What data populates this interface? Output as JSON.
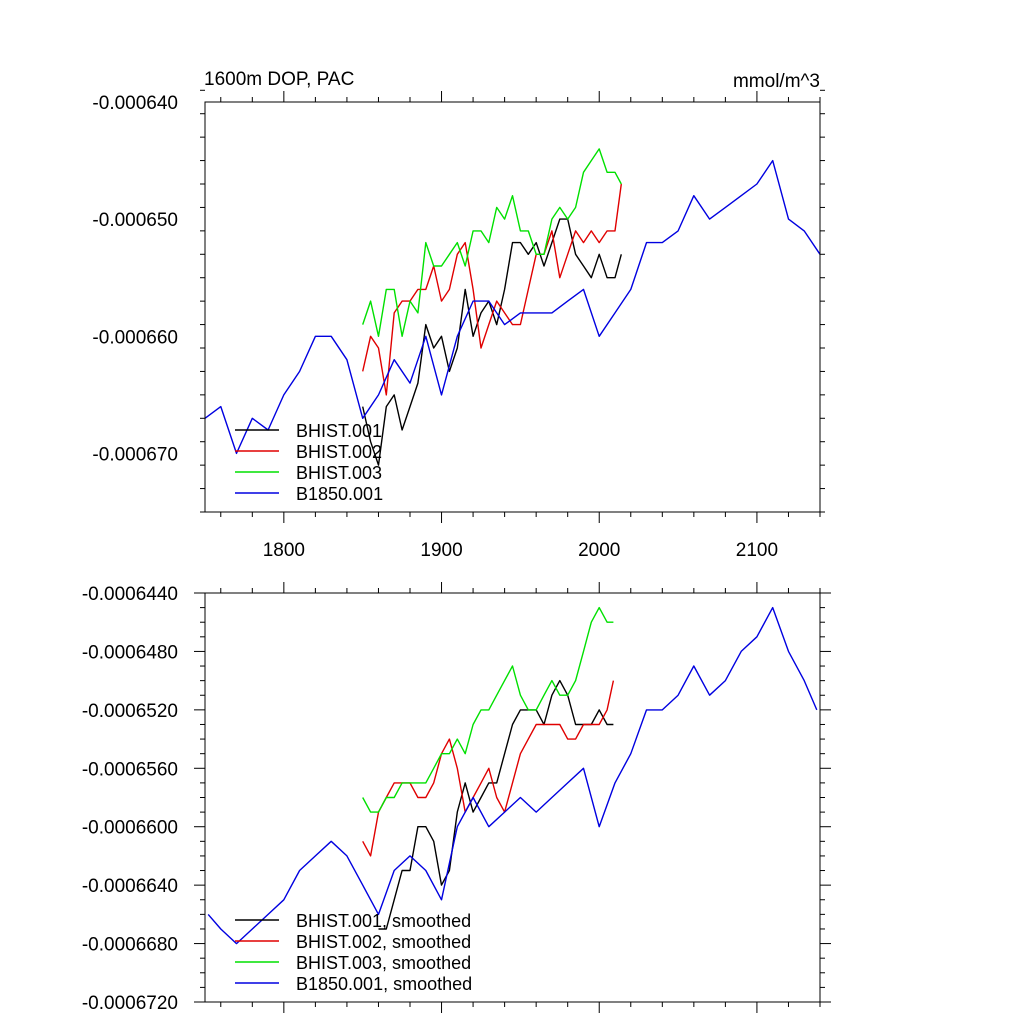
{
  "colors": {
    "BHIST.001": "#000000",
    "BHIST.002": "#e00000",
    "BHIST.003": "#00e000",
    "B1850.001": "#0000e0"
  },
  "chart_data": [
    {
      "type": "line",
      "title": "1600m DOP, PAC",
      "units": "mmol/m^3",
      "xlim": [
        1750,
        2140
      ],
      "ylim": [
        -0.000675,
        -0.00064
      ],
      "xticks": [
        1800,
        1900,
        2000,
        2100
      ],
      "yticks": [
        -0.00064,
        -0.00065,
        -0.00066,
        -0.00067
      ],
      "ytick_labels": [
        "-0.000640",
        "-0.000650",
        "-0.000660",
        "-0.000670"
      ],
      "legend": {
        "placement": "bottom-left",
        "entries": [
          "BHIST.001",
          "BHIST.002",
          "BHIST.003",
          "B1850.001"
        ]
      },
      "series": [
        {
          "name": "BHIST.001",
          "x": [
            1850,
            1855,
            1860,
            1865,
            1870,
            1875,
            1880,
            1885,
            1890,
            1895,
            1900,
            1905,
            1910,
            1915,
            1920,
            1925,
            1930,
            1935,
            1940,
            1945,
            1950,
            1955,
            1960,
            1965,
            1970,
            1975,
            1980,
            1985,
            1990,
            1995,
            2000,
            2005,
            2010,
            2014
          ],
          "y": [
            -0.000666,
            -0.000669,
            -0.000671,
            -0.000666,
            -0.000665,
            -0.000668,
            -0.000666,
            -0.000664,
            -0.000659,
            -0.000661,
            -0.00066,
            -0.000663,
            -0.000661,
            -0.000656,
            -0.00066,
            -0.000658,
            -0.000657,
            -0.000659,
            -0.000656,
            -0.000652,
            -0.000652,
            -0.000653,
            -0.000652,
            -0.000654,
            -0.000652,
            -0.00065,
            -0.00065,
            -0.000653,
            -0.000654,
            -0.000655,
            -0.000653,
            -0.000655,
            -0.000655,
            -0.000653
          ]
        },
        {
          "name": "BHIST.002",
          "x": [
            1850,
            1855,
            1860,
            1865,
            1870,
            1875,
            1880,
            1885,
            1890,
            1895,
            1900,
            1905,
            1910,
            1915,
            1920,
            1925,
            1930,
            1935,
            1940,
            1945,
            1950,
            1955,
            1960,
            1965,
            1970,
            1975,
            1980,
            1985,
            1990,
            1995,
            2000,
            2005,
            2010,
            2014
          ],
          "y": [
            -0.000663,
            -0.00066,
            -0.000661,
            -0.000665,
            -0.000658,
            -0.000657,
            -0.000657,
            -0.000656,
            -0.000656,
            -0.000654,
            -0.000657,
            -0.000656,
            -0.000653,
            -0.000652,
            -0.000656,
            -0.000661,
            -0.000659,
            -0.000657,
            -0.000658,
            -0.000659,
            -0.000659,
            -0.000656,
            -0.000653,
            -0.000653,
            -0.000651,
            -0.000655,
            -0.000653,
            -0.000651,
            -0.000652,
            -0.000651,
            -0.000652,
            -0.000651,
            -0.000651,
            -0.000647
          ]
        },
        {
          "name": "BHIST.003",
          "x": [
            1850,
            1855,
            1860,
            1865,
            1870,
            1875,
            1880,
            1885,
            1890,
            1895,
            1900,
            1905,
            1910,
            1915,
            1920,
            1925,
            1930,
            1935,
            1940,
            1945,
            1950,
            1955,
            1960,
            1965,
            1970,
            1975,
            1980,
            1985,
            1990,
            1995,
            2000,
            2005,
            2010,
            2014
          ],
          "y": [
            -0.000659,
            -0.000657,
            -0.00066,
            -0.000656,
            -0.000656,
            -0.00066,
            -0.000657,
            -0.000658,
            -0.000652,
            -0.000654,
            -0.000654,
            -0.000653,
            -0.000652,
            -0.000654,
            -0.000651,
            -0.000651,
            -0.000652,
            -0.000649,
            -0.00065,
            -0.000648,
            -0.000651,
            -0.000651,
            -0.000653,
            -0.000653,
            -0.00065,
            -0.000649,
            -0.00065,
            -0.000649,
            -0.000646,
            -0.000645,
            -0.000644,
            -0.000646,
            -0.000646,
            -0.000647
          ]
        },
        {
          "name": "B1850.001",
          "x": [
            1750,
            1760,
            1770,
            1780,
            1790,
            1800,
            1810,
            1820,
            1830,
            1840,
            1850,
            1860,
            1870,
            1880,
            1890,
            1900,
            1910,
            1920,
            1930,
            1940,
            1950,
            1960,
            1970,
            1980,
            1990,
            2000,
            2010,
            2020,
            2030,
            2040,
            2050,
            2060,
            2070,
            2080,
            2090,
            2100,
            2110,
            2120,
            2130,
            2140
          ],
          "y": [
            -0.000667,
            -0.000666,
            -0.00067,
            -0.000667,
            -0.000668,
            -0.000665,
            -0.000663,
            -0.00066,
            -0.00066,
            -0.000662,
            -0.000667,
            -0.000665,
            -0.000662,
            -0.000664,
            -0.00066,
            -0.000665,
            -0.00066,
            -0.000657,
            -0.000657,
            -0.000659,
            -0.000658,
            -0.000658,
            -0.000658,
            -0.000657,
            -0.000656,
            -0.00066,
            -0.000658,
            -0.000656,
            -0.000652,
            -0.000652,
            -0.000651,
            -0.000648,
            -0.00065,
            -0.000649,
            -0.000648,
            -0.000647,
            -0.000645,
            -0.00065,
            -0.000651,
            -0.000653
          ]
        }
      ]
    },
    {
      "type": "line",
      "xlim": [
        1750,
        2140
      ],
      "ylim": [
        -0.000672,
        -0.000644
      ],
      "xticks": [
        1800,
        1900,
        2000,
        2100
      ],
      "yticks": [
        -0.000644,
        -0.000648,
        -0.000652,
        -0.000656,
        -0.00066,
        -0.000664,
        -0.000668,
        -0.000672
      ],
      "ytick_labels": [
        "-0.0006440",
        "-0.0006480",
        "-0.0006520",
        "-0.0006560",
        "-0.0006600",
        "-0.0006640",
        "-0.0006680",
        "-0.0006720"
      ],
      "legend": {
        "placement": "bottom-left",
        "entries": [
          "BHIST.001, smoothed",
          "BHIST.002, smoothed",
          "BHIST.003, smoothed",
          "B1850.001, smoothed"
        ]
      },
      "series": [
        {
          "name": "BHIST.001, smoothed",
          "x": [
            1860,
            1865,
            1870,
            1875,
            1880,
            1885,
            1890,
            1895,
            1900,
            1905,
            1910,
            1915,
            1920,
            1925,
            1930,
            1935,
            1940,
            1945,
            1950,
            1955,
            1960,
            1965,
            1970,
            1975,
            1980,
            1985,
            1990,
            1995,
            2000,
            2005,
            2009
          ],
          "y": [
            -0.000667,
            -0.000667,
            -0.000665,
            -0.000663,
            -0.000663,
            -0.00066,
            -0.00066,
            -0.000661,
            -0.000664,
            -0.000663,
            -0.000659,
            -0.000657,
            -0.000659,
            -0.000658,
            -0.000657,
            -0.000657,
            -0.000655,
            -0.000653,
            -0.000652,
            -0.000652,
            -0.000652,
            -0.000653,
            -0.000651,
            -0.00065,
            -0.000651,
            -0.000653,
            -0.000653,
            -0.000653,
            -0.000652,
            -0.000653,
            -0.000653
          ]
        },
        {
          "name": "BHIST.002, smoothed",
          "x": [
            1850,
            1855,
            1860,
            1865,
            1870,
            1875,
            1880,
            1885,
            1890,
            1895,
            1900,
            1905,
            1910,
            1915,
            1920,
            1925,
            1930,
            1935,
            1940,
            1945,
            1950,
            1955,
            1960,
            1965,
            1970,
            1975,
            1980,
            1985,
            1990,
            1995,
            2000,
            2005,
            2009
          ],
          "y": [
            -0.000661,
            -0.000662,
            -0.000659,
            -0.000658,
            -0.000657,
            -0.000657,
            -0.000657,
            -0.000658,
            -0.000658,
            -0.000657,
            -0.000655,
            -0.000654,
            -0.000656,
            -0.000659,
            -0.000658,
            -0.000657,
            -0.000656,
            -0.000658,
            -0.000659,
            -0.000657,
            -0.000655,
            -0.000654,
            -0.000653,
            -0.000653,
            -0.000653,
            -0.000653,
            -0.000654,
            -0.000654,
            -0.000653,
            -0.000653,
            -0.000653,
            -0.000652,
            -0.00065
          ]
        },
        {
          "name": "BHIST.003, smoothed",
          "x": [
            1850,
            1855,
            1860,
            1865,
            1870,
            1875,
            1880,
            1885,
            1890,
            1895,
            1900,
            1905,
            1910,
            1915,
            1920,
            1925,
            1930,
            1935,
            1940,
            1945,
            1950,
            1955,
            1960,
            1965,
            1970,
            1975,
            1980,
            1985,
            1990,
            1995,
            2000,
            2005,
            2009
          ],
          "y": [
            -0.000658,
            -0.000659,
            -0.000659,
            -0.000658,
            -0.000658,
            -0.000657,
            -0.000657,
            -0.000657,
            -0.000657,
            -0.000656,
            -0.000655,
            -0.000655,
            -0.000654,
            -0.000655,
            -0.000653,
            -0.000652,
            -0.000652,
            -0.000651,
            -0.00065,
            -0.000649,
            -0.000651,
            -0.000652,
            -0.000652,
            -0.000651,
            -0.00065,
            -0.000651,
            -0.000651,
            -0.00065,
            -0.000648,
            -0.000646,
            -0.000645,
            -0.000646,
            -0.000646
          ]
        },
        {
          "name": "B1850.001, smoothed",
          "x": [
            1752,
            1760,
            1770,
            1780,
            1790,
            1800,
            1810,
            1820,
            1830,
            1840,
            1850,
            1860,
            1870,
            1880,
            1890,
            1900,
            1910,
            1920,
            1930,
            1940,
            1950,
            1960,
            1970,
            1980,
            1990,
            2000,
            2010,
            2020,
            2030,
            2040,
            2050,
            2060,
            2070,
            2080,
            2090,
            2100,
            2110,
            2120,
            2130,
            2138
          ],
          "y": [
            -0.000666,
            -0.000667,
            -0.000668,
            -0.000667,
            -0.000666,
            -0.000665,
            -0.000663,
            -0.000662,
            -0.000661,
            -0.000662,
            -0.000664,
            -0.000666,
            -0.000663,
            -0.000662,
            -0.000663,
            -0.000665,
            -0.00066,
            -0.000658,
            -0.00066,
            -0.000659,
            -0.000658,
            -0.000659,
            -0.000658,
            -0.000657,
            -0.000656,
            -0.00066,
            -0.000657,
            -0.000655,
            -0.000652,
            -0.000652,
            -0.000651,
            -0.000649,
            -0.000651,
            -0.00065,
            -0.000648,
            -0.000647,
            -0.000645,
            -0.000648,
            -0.00065,
            -0.000652
          ]
        }
      ]
    }
  ]
}
